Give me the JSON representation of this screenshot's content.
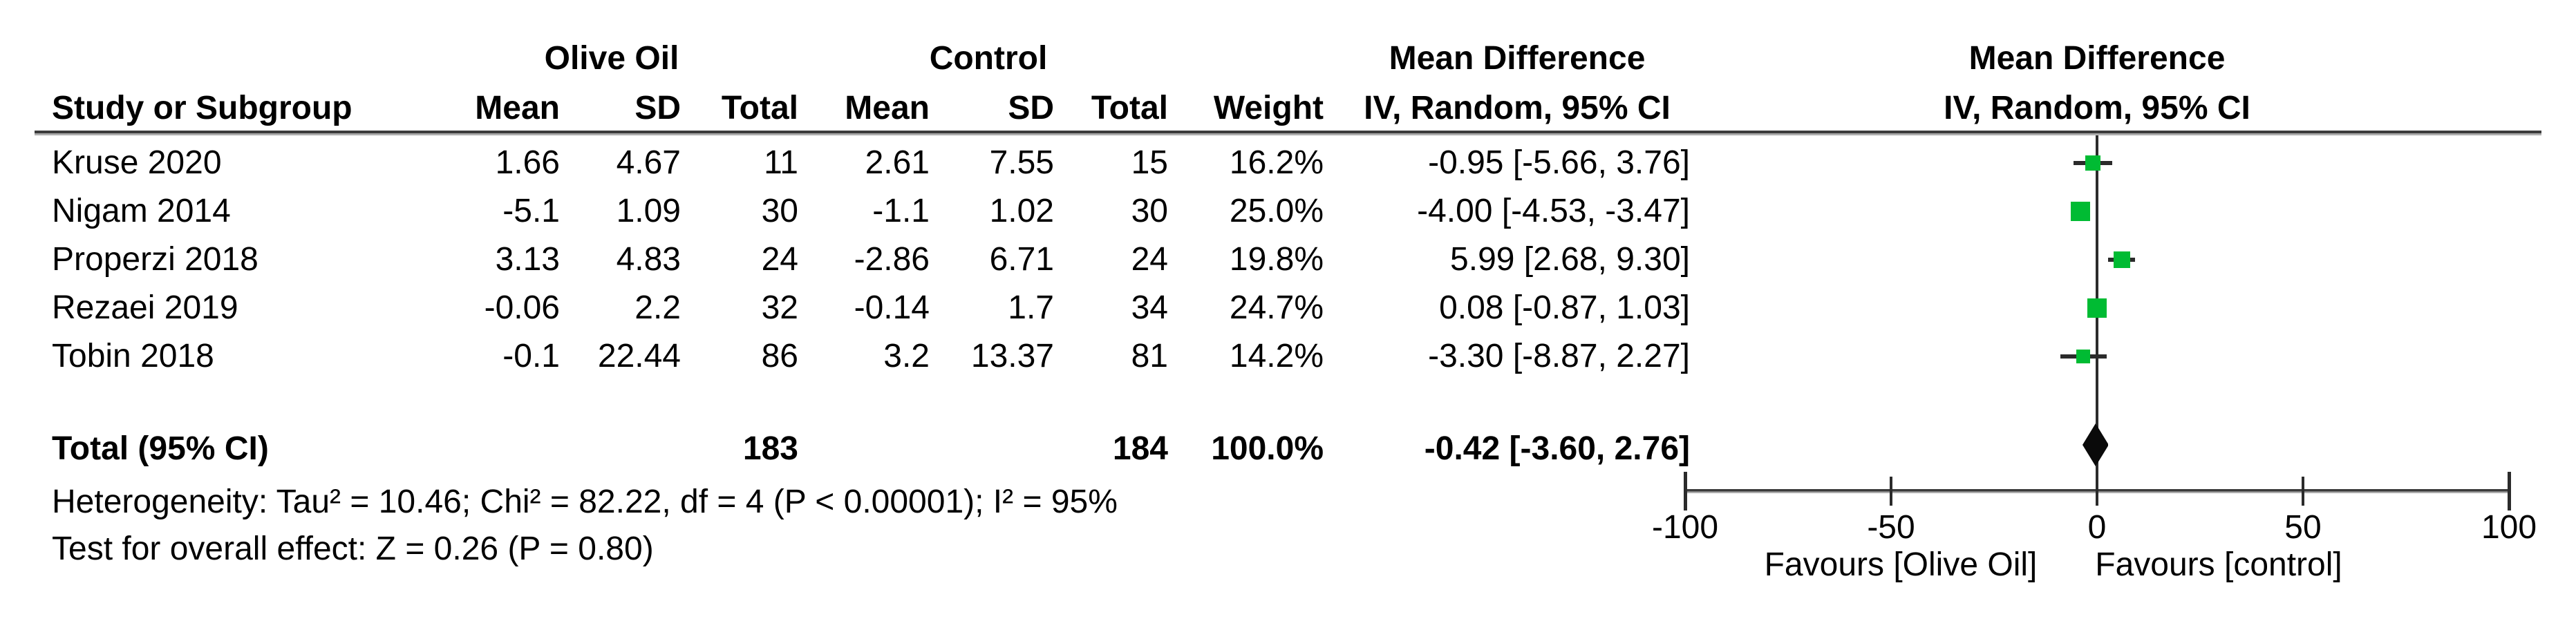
{
  "header": {
    "group_left": "Olive Oil",
    "group_right": "Control",
    "md_text_line1": "Mean Difference",
    "md_text_line2": "IV, Random, 95% CI",
    "md_plot_line1": "Mean Difference",
    "md_plot_line2": "IV, Random, 95% CI",
    "study": "Study or Subgroup",
    "mean1": "Mean",
    "sd1": "SD",
    "total1": "Total",
    "mean2": "Mean",
    "sd2": "SD",
    "total2": "Total",
    "weight": "Weight"
  },
  "rows": [
    {
      "study": "Kruse 2020",
      "mean1": "1.66",
      "sd1": "4.67",
      "total1": "11",
      "mean2": "2.61",
      "sd2": "7.55",
      "total2": "15",
      "weight": "16.2%",
      "md": "-0.95 [-5.66, 3.76]"
    },
    {
      "study": "Nigam 2014",
      "mean1": "-5.1",
      "sd1": "1.09",
      "total1": "30",
      "mean2": "-1.1",
      "sd2": "1.02",
      "total2": "30",
      "weight": "25.0%",
      "md": "-4.00 [-4.53, -3.47]"
    },
    {
      "study": "Properzi 2018",
      "mean1": "3.13",
      "sd1": "4.83",
      "total1": "24",
      "mean2": "-2.86",
      "sd2": "6.71",
      "total2": "24",
      "weight": "19.8%",
      "md": "5.99 [2.68, 9.30]"
    },
    {
      "study": "Rezaei 2019",
      "mean1": "-0.06",
      "sd1": "2.2",
      "total1": "32",
      "mean2": "-0.14",
      "sd2": "1.7",
      "total2": "34",
      "weight": "24.7%",
      "md": "0.08 [-0.87, 1.03]"
    },
    {
      "study": "Tobin 2018",
      "mean1": "-0.1",
      "sd1": "22.44",
      "total1": "86",
      "mean2": "3.2",
      "sd2": "13.37",
      "total2": "81",
      "weight": "14.2%",
      "md": "-3.30 [-8.87, 2.27]"
    }
  ],
  "total_row": {
    "label": "Total (95% CI)",
    "total1": "183",
    "total2": "184",
    "weight": "100.0%",
    "md": "-0.42 [-3.60, 2.76]"
  },
  "footer": {
    "heterogeneity": "Heterogeneity: Tau² = 10.46; Chi² = 82.22, df = 4 (P < 0.00001); I² = 95%",
    "overall_effect": "Test for overall effect: Z = 0.26 (P = 0.80)"
  },
  "chart_data": {
    "type": "forest",
    "effect_measure": "Mean Difference",
    "model": "IV, Random, 95% CI",
    "axis": {
      "min": -100,
      "max": 100,
      "ticks": [
        -100,
        -50,
        0,
        50,
        100
      ]
    },
    "favours_left": "Favours [Olive Oil]",
    "favours_right": "Favours [control]",
    "studies": [
      {
        "name": "Kruse 2020",
        "md": -0.95,
        "ci_low": -5.66,
        "ci_high": 3.76,
        "weight": 16.2
      },
      {
        "name": "Nigam 2014",
        "md": -4.0,
        "ci_low": -4.53,
        "ci_high": -3.47,
        "weight": 25.0
      },
      {
        "name": "Properzi 2018",
        "md": 5.99,
        "ci_low": 2.68,
        "ci_high": 9.3,
        "weight": 19.8
      },
      {
        "name": "Rezaei 2019",
        "md": 0.08,
        "ci_low": -0.87,
        "ci_high": 1.03,
        "weight": 24.7
      },
      {
        "name": "Tobin 2018",
        "md": -3.3,
        "ci_low": -8.87,
        "ci_high": 2.27,
        "weight": 14.2
      }
    ],
    "total": {
      "md": -0.42,
      "ci_low": -3.6,
      "ci_high": 2.76
    },
    "marker_color": "#00bb33",
    "diamond_color": "#0a0a0a",
    "line_color": "#2b2b2b"
  }
}
